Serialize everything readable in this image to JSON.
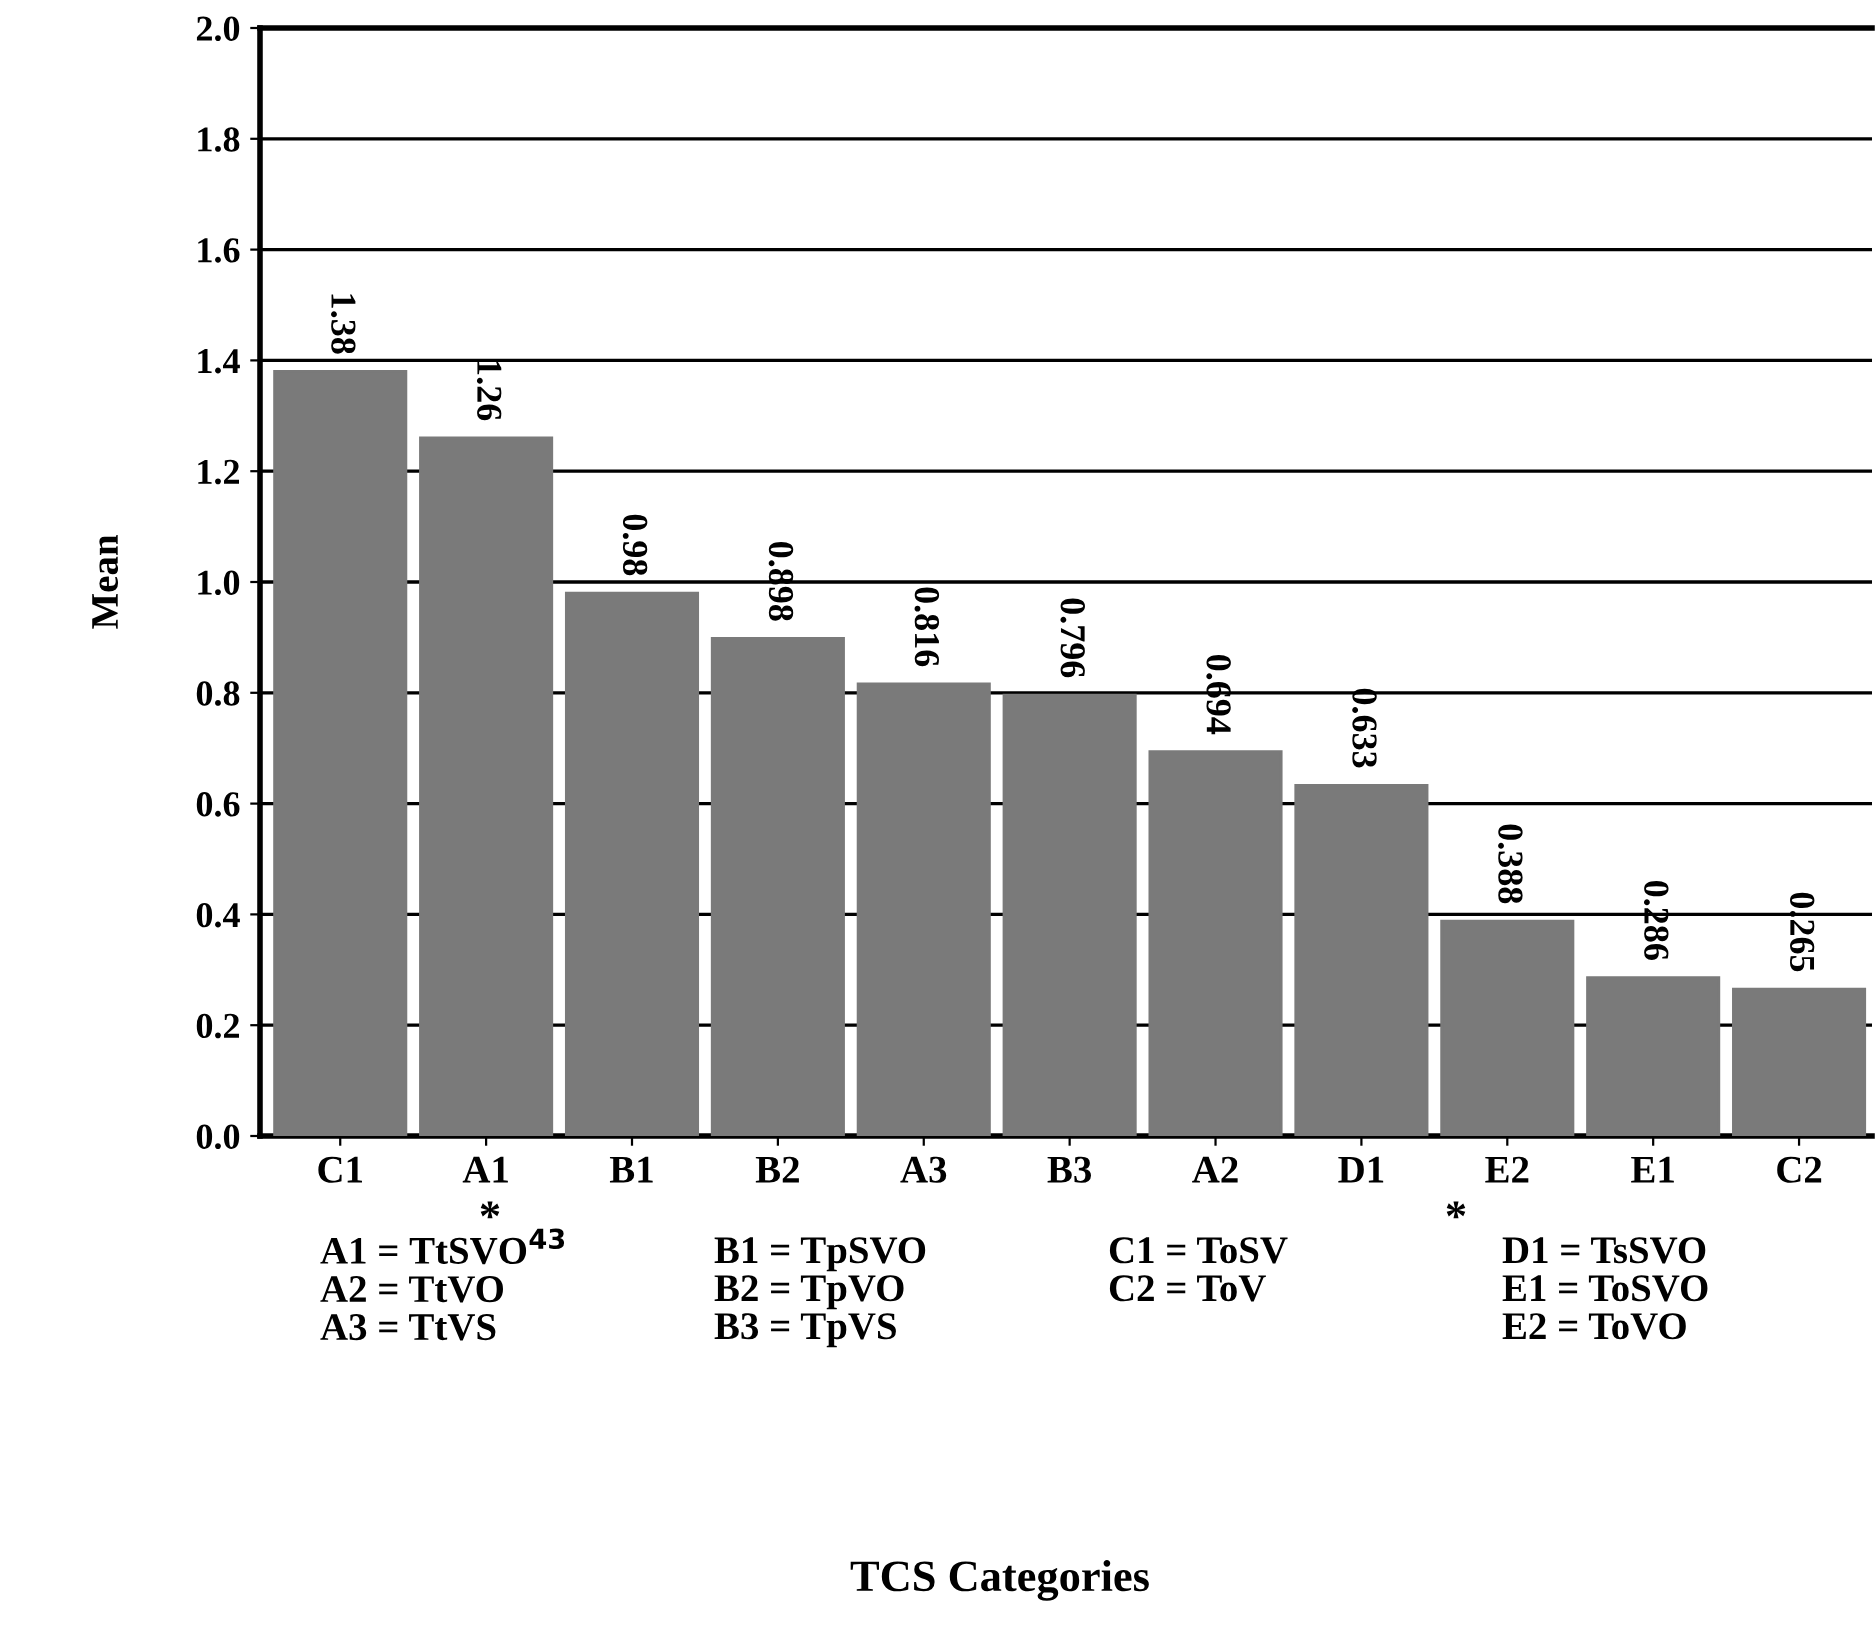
{
  "chart_data": {
    "type": "bar",
    "ylabel": "Mean",
    "categories": [
      "C1",
      "A1",
      "B1",
      "B2",
      "A3",
      "B3",
      "A2",
      "D1",
      "E2",
      "E1",
      "C2"
    ],
    "values": [
      1.38,
      1.26,
      0.98,
      0.898,
      0.816,
      0.796,
      0.694,
      0.633,
      0.388,
      0.286,
      0.265
    ],
    "color": "#7a7a7a",
    "data_labels": true,
    "grid": "y",
    "ylim": [
      0,
      2
    ],
    "yticks": [
      {
        "value": 0,
        "label": "0.0"
      },
      {
        "value": 0.2,
        "label": "0.2"
      },
      {
        "value": 0.4,
        "label": "0.4"
      },
      {
        "value": 0.6,
        "label": "0.6"
      },
      {
        "value": 0.8,
        "label": "0.8"
      },
      {
        "value": 1,
        "label": "1.0"
      },
      {
        "value": 1.2,
        "label": "1.2"
      },
      {
        "value": 1.4,
        "label": "1.4"
      },
      {
        "value": 1.6,
        "label": "1.6"
      },
      {
        "value": 1.8,
        "label": "1.8"
      },
      {
        "value": 2,
        "label": "2.0"
      }
    ],
    "annotations": [
      "*",
      "*",
      "A1 = TtSVO$^{43}$\nA2 = TtVO\nA3 = TtVS",
      "B1 = TpSVO\nB2 = TpVO\nB3 = TpVS",
      "C1 = ToSV\nC2 = ToV",
      "D1 = TsSVO\nE1 = ToSVO\nE2 = ToVO",
      "TCS Categories"
    ]
  }
}
